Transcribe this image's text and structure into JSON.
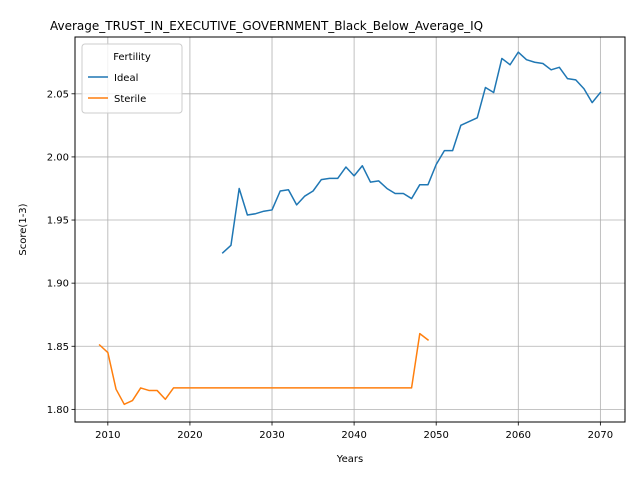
{
  "chart_data": {
    "type": "line",
    "title": "Average_TRUST_IN_EXECUTIVE_GOVERNMENT_Black_Below_Average_IQ",
    "xlabel": "Years",
    "ylabel": "Score(1-3)",
    "xlim": [
      2006,
      2073
    ],
    "ylim": [
      1.79,
      2.095
    ],
    "xticks": [
      2010,
      2020,
      2030,
      2040,
      2050,
      2060,
      2070
    ],
    "yticks": [
      1.8,
      1.85,
      1.9,
      1.95,
      2.0,
      2.05
    ],
    "grid": true,
    "legend": {
      "title": "Fertility",
      "position": "top-left"
    },
    "series": [
      {
        "name": "Ideal",
        "color": "#1f77b4",
        "points": [
          [
            2024,
            1.924
          ],
          [
            2025,
            1.93
          ],
          [
            2026,
            1.975
          ],
          [
            2027,
            1.954
          ],
          [
            2028,
            1.955
          ],
          [
            2029,
            1.957
          ],
          [
            2030,
            1.958
          ],
          [
            2031,
            1.973
          ],
          [
            2032,
            1.974
          ],
          [
            2033,
            1.962
          ],
          [
            2034,
            1.969
          ],
          [
            2035,
            1.973
          ],
          [
            2036,
            1.982
          ],
          [
            2037,
            1.983
          ],
          [
            2038,
            1.983
          ],
          [
            2039,
            1.992
          ],
          [
            2040,
            1.985
          ],
          [
            2041,
            1.993
          ],
          [
            2042,
            1.98
          ],
          [
            2043,
            1.981
          ],
          [
            2044,
            1.975
          ],
          [
            2045,
            1.971
          ],
          [
            2046,
            1.971
          ],
          [
            2047,
            1.967
          ],
          [
            2048,
            1.978
          ],
          [
            2049,
            1.978
          ],
          [
            2050,
            1.994
          ],
          [
            2051,
            2.005
          ],
          [
            2052,
            2.005
          ],
          [
            2053,
            2.025
          ],
          [
            2054,
            2.028
          ],
          [
            2055,
            2.031
          ],
          [
            2056,
            2.055
          ],
          [
            2057,
            2.051
          ],
          [
            2058,
            2.078
          ],
          [
            2059,
            2.073
          ],
          [
            2060,
            2.083
          ],
          [
            2061,
            2.077
          ],
          [
            2062,
            2.075
          ],
          [
            2063,
            2.074
          ],
          [
            2064,
            2.069
          ],
          [
            2065,
            2.071
          ],
          [
            2066,
            2.062
          ],
          [
            2067,
            2.061
          ],
          [
            2068,
            2.054
          ],
          [
            2069,
            2.043
          ],
          [
            2070,
            2.051
          ]
        ]
      },
      {
        "name": "Sterile",
        "color": "#ff7f0e",
        "points": [
          [
            2009,
            1.851
          ],
          [
            2010,
            1.845
          ],
          [
            2011,
            1.816
          ],
          [
            2012,
            1.804
          ],
          [
            2013,
            1.807
          ],
          [
            2014,
            1.817
          ],
          [
            2015,
            1.815
          ],
          [
            2016,
            1.815
          ],
          [
            2017,
            1.808
          ],
          [
            2018,
            1.817
          ],
          [
            2019,
            1.817
          ],
          [
            2020,
            1.817
          ],
          [
            2021,
            1.817
          ],
          [
            2022,
            1.817
          ],
          [
            2023,
            1.817
          ],
          [
            2024,
            1.817
          ],
          [
            2025,
            1.817
          ],
          [
            2026,
            1.817
          ],
          [
            2027,
            1.817
          ],
          [
            2028,
            1.817
          ],
          [
            2029,
            1.817
          ],
          [
            2030,
            1.817
          ],
          [
            2031,
            1.817
          ],
          [
            2032,
            1.817
          ],
          [
            2033,
            1.817
          ],
          [
            2034,
            1.817
          ],
          [
            2035,
            1.817
          ],
          [
            2036,
            1.817
          ],
          [
            2037,
            1.817
          ],
          [
            2038,
            1.817
          ],
          [
            2039,
            1.817
          ],
          [
            2040,
            1.817
          ],
          [
            2041,
            1.817
          ],
          [
            2042,
            1.817
          ],
          [
            2043,
            1.817
          ],
          [
            2044,
            1.817
          ],
          [
            2045,
            1.817
          ],
          [
            2046,
            1.817
          ],
          [
            2047,
            1.817
          ],
          [
            2048,
            1.86
          ],
          [
            2049,
            1.855
          ]
        ]
      }
    ]
  }
}
